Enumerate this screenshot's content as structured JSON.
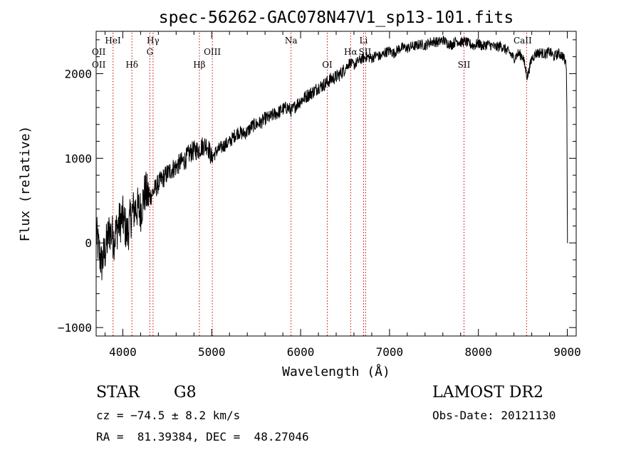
{
  "chart_data": {
    "type": "line",
    "title": "spec-56262-GAC078N47V1_sp13-101.fits",
    "xlabel": "Wavelength (Å)",
    "ylabel": "Flux (relative)",
    "xlim": [
      3700,
      9100
    ],
    "ylim": [
      -1100,
      2500
    ],
    "xticks": [
      4000,
      5000,
      6000,
      7000,
      8000,
      9000
    ],
    "yticks": [
      -1000,
      0,
      1000,
      2000
    ],
    "xtick_labels": [
      "4000",
      "5000",
      "6000",
      "7000",
      "8000",
      "9000"
    ],
    "ytick_labels": [
      "−1000",
      "0",
      "1000",
      "2000"
    ],
    "grid": false,
    "line_color": "#000000",
    "marker_line_color": "#cc0000",
    "series": [
      {
        "x": [
          3700,
          3760,
          3800,
          3850,
          3900,
          3950,
          4000,
          4050,
          4100,
          4150,
          4200,
          4250,
          4300,
          4350,
          4400,
          4450,
          4500,
          4550,
          4600,
          4650,
          4700,
          4750,
          4800,
          4850,
          4900,
          4950,
          5000,
          5050,
          5100,
          5150,
          5200,
          5250,
          5300,
          5350,
          5400,
          5450,
          5500,
          5550,
          5600,
          5650,
          5700,
          5750,
          5800,
          5850,
          5900,
          5950,
          6000,
          6050,
          6100,
          6150,
          6200,
          6250,
          6300,
          6350,
          6400,
          6450,
          6500,
          6550,
          6600,
          6650,
          6700,
          6750,
          6800,
          6850,
          6900,
          6950,
          7000,
          7050,
          7100,
          7150,
          7200,
          7250,
          7300,
          7350,
          7400,
          7450,
          7500,
          7550,
          7600,
          7650,
          7700,
          7750,
          7800,
          7850,
          7900,
          7950,
          8000,
          8050,
          8100,
          8150,
          8200,
          8250,
          8300,
          8350,
          8400,
          8450,
          8500,
          8550,
          8600,
          8650,
          8700,
          8750,
          8800,
          8850,
          8900,
          8950,
          8990,
          9000,
          9005
        ],
        "y": [
          100,
          -250,
          -100,
          150,
          50,
          220,
          300,
          100,
          350,
          420,
          380,
          600,
          530,
          620,
          700,
          760,
          820,
          870,
          900,
          950,
          980,
          1060,
          1090,
          1100,
          1150,
          1160,
          1000,
          1080,
          1120,
          1160,
          1190,
          1260,
          1310,
          1290,
          1310,
          1380,
          1400,
          1420,
          1470,
          1480,
          1520,
          1540,
          1580,
          1600,
          1560,
          1630,
          1680,
          1720,
          1760,
          1790,
          1840,
          1860,
          1900,
          1940,
          1960,
          2000,
          2060,
          2130,
          2100,
          2150,
          2180,
          2200,
          2180,
          2220,
          2200,
          2250,
          2270,
          2240,
          2290,
          2310,
          2300,
          2320,
          2330,
          2350,
          2330,
          2370,
          2380,
          2370,
          2400,
          2360,
          2340,
          2390,
          2370,
          2380,
          2350,
          2330,
          2360,
          2320,
          2350,
          2330,
          2310,
          2330,
          2290,
          2250,
          2180,
          2240,
          2200,
          1960,
          2180,
          2240,
          2250,
          2230,
          2260,
          2200,
          2240,
          2210,
          2100,
          1600,
          0
        ]
      }
    ],
    "line_markers": [
      {
        "label": "OII",
        "x": 3727,
        "row": 1,
        "align": "start"
      },
      {
        "label": "HeI",
        "x": 3889,
        "row": 0,
        "align": "middle"
      },
      {
        "label": "OII",
        "x": 3727,
        "row": 2,
        "align": "start"
      },
      {
        "label": "Hδ",
        "x": 4102,
        "row": 2,
        "align": "middle"
      },
      {
        "label": "Hγ",
        "x": 4340,
        "row": 0,
        "align": "middle"
      },
      {
        "label": "G",
        "x": 4304,
        "row": 1,
        "align": "middle"
      },
      {
        "label": "OIII",
        "x": 5007,
        "row": 1,
        "align": "middle"
      },
      {
        "label": "Hβ",
        "x": 4861,
        "row": 2,
        "align": "middle"
      },
      {
        "label": "Na",
        "x": 5893,
        "row": 0,
        "align": "middle"
      },
      {
        "label": "OI",
        "x": 6300,
        "row": 2,
        "align": "middle"
      },
      {
        "label": "Hα",
        "x": 6563,
        "row": 1,
        "align": "middle"
      },
      {
        "label": "Li",
        "x": 6708,
        "row": 0,
        "align": "middle"
      },
      {
        "label": "SII",
        "x": 6724,
        "row": 1,
        "align": "middle"
      },
      {
        "label": "SII",
        "x": 7838,
        "row": 2,
        "align": "middle"
      },
      {
        "label": "CaII",
        "x": 8498,
        "row": 0,
        "align": "middle"
      }
    ],
    "marker_positions_angstrom": [
      3890,
      4102,
      4304,
      4340,
      4861,
      5007,
      5893,
      6300,
      6563,
      6708,
      6731,
      7838,
      8542
    ]
  },
  "info": {
    "object_class": "STAR",
    "subclass": "G8",
    "cz": "cz = −74.5 ± 8.2 km/s",
    "coords": "RA =  81.39384, DEC =  48.27046",
    "survey": "LAMOST DR2",
    "obs_date": "Obs-Date: 20121130"
  }
}
